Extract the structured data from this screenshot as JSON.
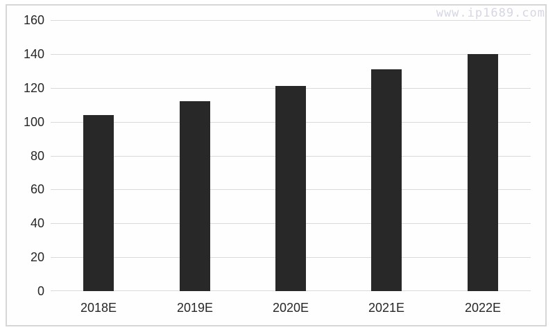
{
  "watermark": {
    "text": "www.ip1689.com"
  },
  "chart_data": {
    "type": "bar",
    "categories": [
      "2018E",
      "2019E",
      "2020E",
      "2021E",
      "2022E"
    ],
    "values": [
      104,
      112,
      121,
      131,
      140
    ],
    "title": "",
    "xlabel": "",
    "ylabel": "",
    "ylim": [
      0,
      160
    ],
    "ytick_step": 20,
    "grid": true,
    "legend": "none"
  },
  "colors": {
    "bar": "#282828",
    "grid": "#d9d9d9",
    "axis_text": "#262626",
    "frame_border": "#d6d6d6",
    "watermark": "#d6d6e4",
    "background": "#ffffff"
  }
}
